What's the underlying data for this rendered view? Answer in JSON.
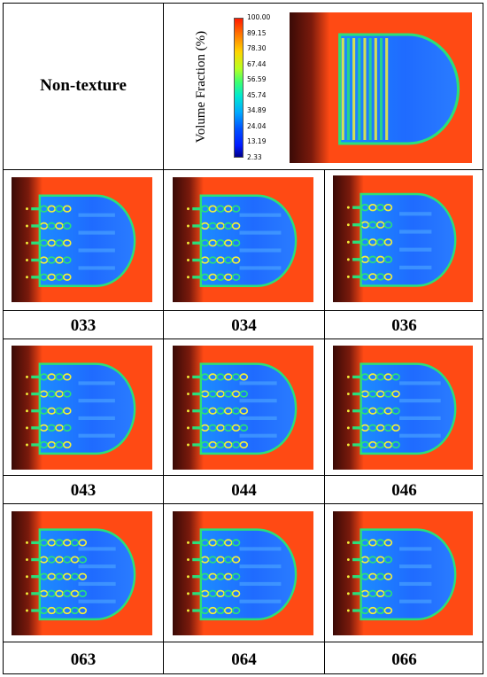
{
  "header": {
    "non_texture_label": "Non-texture",
    "colorbar": {
      "title": "Volume Fraction (%)",
      "ticks": [
        "100.00",
        "89.15",
        "78.30",
        "67.44",
        "56.59",
        "45.74",
        "34.89",
        "24.04",
        "13.19",
        "2.33"
      ]
    }
  },
  "rows": [
    {
      "labels": [
        "033",
        "034",
        "036"
      ]
    },
    {
      "labels": [
        "043",
        "044",
        "046"
      ]
    },
    {
      "labels": [
        "063",
        "064",
        "066"
      ]
    }
  ],
  "colors": {
    "background_orange": "#ff4a14",
    "dark_edge": "#3a0a06",
    "fluid_blue": "#1f6bff",
    "band_green": "#29e07a",
    "band_yellow": "#f2f03a"
  }
}
